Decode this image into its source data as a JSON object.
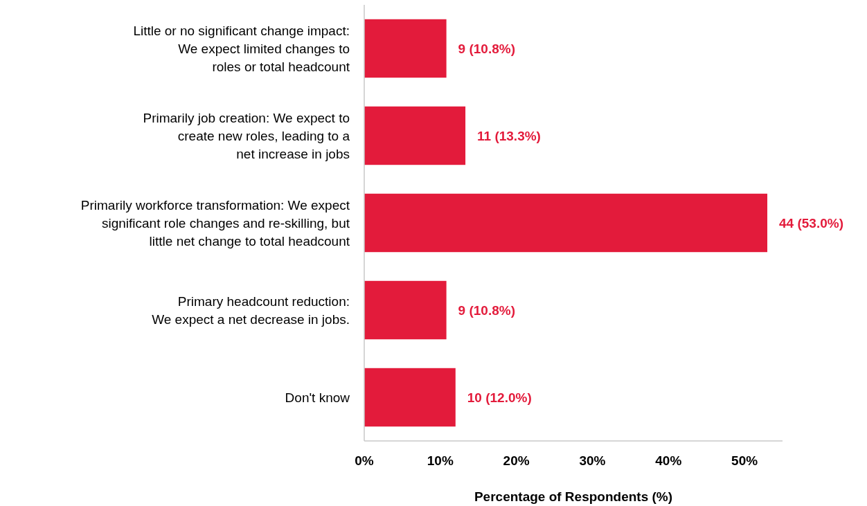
{
  "chart_data": {
    "type": "bar",
    "orientation": "horizontal",
    "xlabel": "Percentage of Respondents (%)",
    "categories": [
      "Little or no significant change impact:\nWe expect limited changes to\nroles or total headcount",
      "Primarily job creation: We expect to\ncreate new roles, leading to a\nnet increase in jobs",
      "Primarily workforce transformation: We expect\nsignificant role changes and re-skilling, but\nlittle net change to total headcount",
      "Primary headcount reduction:\nWe expect a net decrease in jobs.",
      "Don't know"
    ],
    "values": [
      10.8,
      13.3,
      53.0,
      10.8,
      12.0
    ],
    "value_labels": [
      "9 (10.8%)",
      "11 (13.3%)",
      "44 (53.0%)",
      "9 (10.8%)",
      "10 (12.0%)"
    ],
    "color": "#e31b3b",
    "xlim": [
      0,
      55
    ],
    "xticks": [
      {
        "value": 0,
        "label": "0%"
      },
      {
        "value": 10,
        "label": "10%"
      },
      {
        "value": 20,
        "label": "20%"
      },
      {
        "value": 30,
        "label": "30%"
      },
      {
        "value": 40,
        "label": "40%"
      },
      {
        "value": 50,
        "label": "50%"
      }
    ],
    "grid": false
  }
}
